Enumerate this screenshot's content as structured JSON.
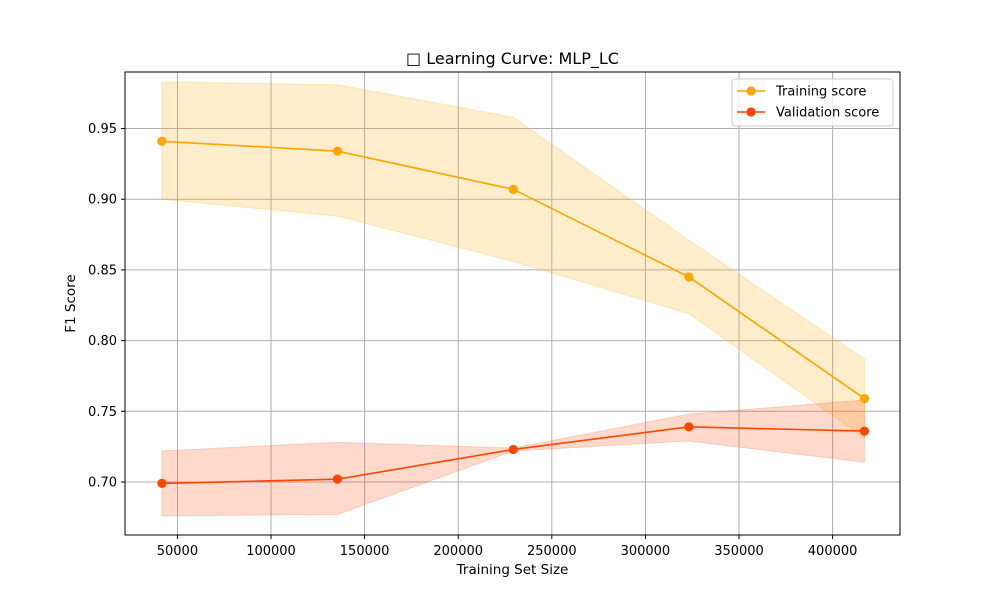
{
  "chart_data": {
    "type": "line",
    "title": "□ Learning Curve: MLP_LC",
    "xlabel": "Training Set Size",
    "ylabel": "F1 Score",
    "xlim": [
      22000,
      436000
    ],
    "ylim": [
      0.6625,
      0.99
    ],
    "x_ticks": [
      50000,
      100000,
      150000,
      200000,
      250000,
      300000,
      350000,
      400000
    ],
    "y_ticks": [
      0.7,
      0.75,
      0.8,
      0.85,
      0.9,
      0.95
    ],
    "x_tick_labels": [
      "50000",
      "100000",
      "150000",
      "200000",
      "250000",
      "300000",
      "350000",
      "400000"
    ],
    "y_tick_labels": [
      "0.70",
      "0.75",
      "0.80",
      "0.85",
      "0.90",
      "0.95"
    ],
    "grid": true,
    "legend_position": "top-right",
    "x": [
      41700,
      135500,
      229400,
      323200,
      417000
    ],
    "series": [
      {
        "name": "Training score",
        "color": "#FFA500",
        "values": [
          0.941,
          0.934,
          0.907,
          0.845,
          0.759
        ],
        "band_upper": [
          0.983,
          0.981,
          0.958,
          0.871,
          0.787
        ],
        "band_lower": [
          0.9,
          0.888,
          0.856,
          0.819,
          0.731
        ]
      },
      {
        "name": "Validation score",
        "color": "#FF4500",
        "values": [
          0.699,
          0.702,
          0.723,
          0.739,
          0.736
        ],
        "band_upper": [
          0.722,
          0.728,
          0.724,
          0.748,
          0.758
        ],
        "band_lower": [
          0.676,
          0.677,
          0.722,
          0.729,
          0.714
        ]
      }
    ]
  }
}
